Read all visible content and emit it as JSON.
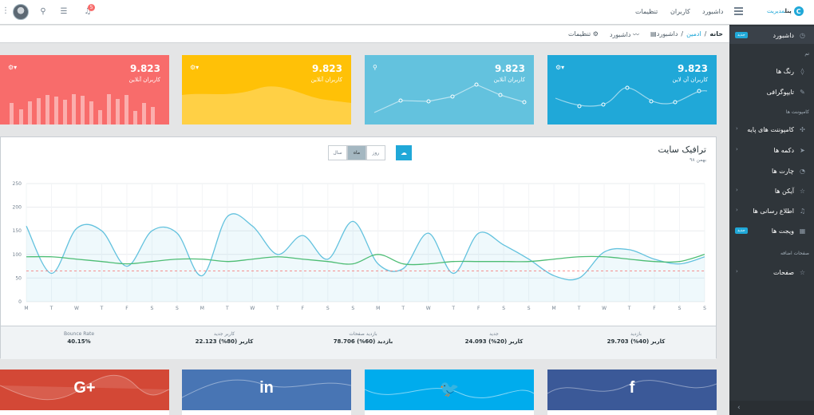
{
  "header": {
    "brand_main": "پنل",
    "brand_sub": "مدیریت",
    "nav": [
      "داشبورد",
      "کاربران",
      "تنظیمات"
    ],
    "notification_count": "5"
  },
  "breadcrumb": {
    "items": [
      "خانه",
      "ادمین",
      "داشبورد"
    ],
    "menu": [
      "داشبورد",
      "تنظیمات"
    ]
  },
  "sidebar": {
    "items": [
      {
        "label": "داشبورد",
        "icon": "speedometer-icon",
        "badge": "جدید"
      },
      {
        "label": "رنگ ها",
        "icon": "drop-icon"
      },
      {
        "label": "تایپوگرافی",
        "icon": "pencil-icon"
      },
      {
        "label": "کامپوننت های پایه",
        "icon": "puzzle-icon"
      },
      {
        "label": "دکمه ها",
        "icon": "cursor-icon"
      },
      {
        "label": "چارت ها",
        "icon": "pie-chart-icon"
      },
      {
        "label": "آیکن ها",
        "icon": "star-icon"
      },
      {
        "label": "اطلاع رسانی ها",
        "icon": "bell-icon"
      },
      {
        "label": "ویجت ها",
        "icon": "calculator-icon",
        "badge": "جدید"
      },
      {
        "label": "صفحات",
        "icon": "star-icon"
      }
    ],
    "titles": [
      "تم",
      "کامپوننت ها",
      "صفحات اضافه"
    ]
  },
  "cards": [
    {
      "value": "9.823",
      "label": "کاربران آن لاین",
      "color": "#20a8d8"
    },
    {
      "value": "9.823",
      "label": "کاربران آنلاین",
      "color": "#63c2de"
    },
    {
      "value": "9.823",
      "label": "کاربران آنلاین",
      "color": "#ffc107"
    },
    {
      "value": "9.823",
      "label": "کاربران آنلاین",
      "color": "#f86c6b"
    }
  ],
  "traffic": {
    "title": "ترافیک سایت",
    "subtitle": "بهمن ۹۸",
    "periods": [
      "روز",
      "ماه",
      "سال"
    ],
    "active_period": "ماه"
  },
  "chart_data": {
    "type": "line",
    "x": [
      "M",
      "T",
      "W",
      "T",
      "F",
      "S",
      "S",
      "M",
      "T",
      "W",
      "T",
      "F",
      "S",
      "S",
      "M",
      "T",
      "W",
      "T",
      "F",
      "S",
      "S",
      "M",
      "T",
      "W",
      "T",
      "F",
      "S",
      "S"
    ],
    "ylim": [
      0,
      250
    ],
    "yticks": [
      0,
      50,
      100,
      150,
      200,
      250
    ],
    "grid": true,
    "series": [
      {
        "values": [
          160,
          60,
          155,
          150,
          75,
          150,
          145,
          55,
          180,
          160,
          100,
          140,
          90,
          170,
          80,
          70,
          145,
          60,
          145,
          120,
          90,
          55,
          50,
          105,
          110,
          90,
          80,
          95
        ],
        "color": "#63c2de"
      },
      {
        "values": [
          95,
          95,
          90,
          85,
          80,
          85,
          90,
          90,
          85,
          90,
          95,
          90,
          85,
          80,
          100,
          80,
          80,
          85,
          85,
          85,
          85,
          90,
          95,
          95,
          90,
          85,
          85,
          100
        ],
        "color": "#4dbd74"
      },
      {
        "values": [
          65,
          65,
          65,
          65,
          65,
          65,
          65,
          65,
          65,
          65,
          65,
          65,
          65,
          65,
          65,
          65,
          65,
          65,
          65,
          65,
          65,
          65,
          65,
          65,
          65,
          65,
          65,
          65
        ],
        "color": "#f86c6b"
      }
    ]
  },
  "stats": [
    {
      "title": "بازدید",
      "value": "29.703 کاربر (40%)",
      "color": "#4dbd74"
    },
    {
      "title": "جدید",
      "value": "24.093 کاربر (20%)",
      "color": "#63c2de"
    },
    {
      "title": "بازدید صفحات",
      "value": "78.706 بازدید (60%)",
      "color": "#ffc107"
    },
    {
      "title": "کاربر جدید",
      "value": "22.123 کاربر (80%)",
      "color": "#f86c6b"
    },
    {
      "title": "Bounce Rate",
      "value": "40.15%",
      "color": "#20a8d8"
    }
  ],
  "social": [
    {
      "name": "facebook-icon",
      "glyph": "f",
      "color": "#3b5998"
    },
    {
      "name": "twitter-icon",
      "glyph": "🐦",
      "color": "#00aced"
    },
    {
      "name": "linkedin-icon",
      "glyph": "in",
      "color": "#4875b4"
    },
    {
      "name": "google-plus-icon",
      "glyph": "G+",
      "color": "#d34836"
    }
  ]
}
